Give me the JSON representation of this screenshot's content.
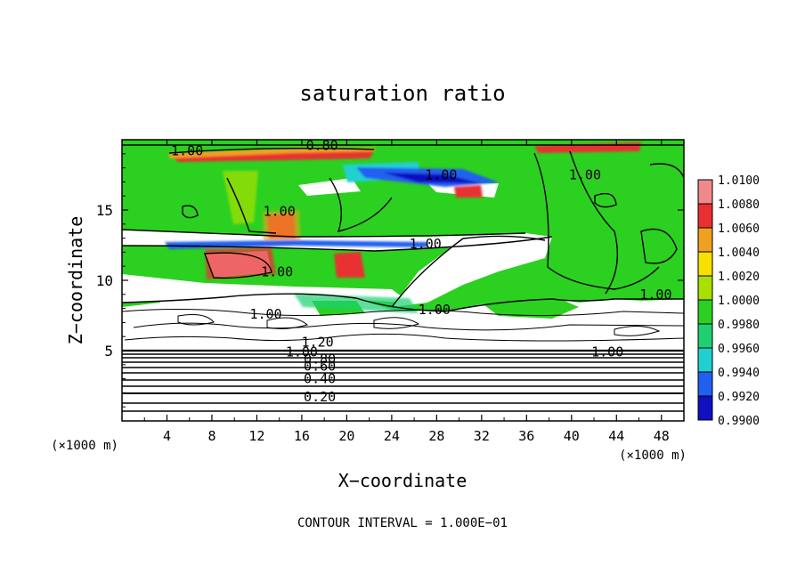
{
  "chart_data": {
    "type": "heatmap",
    "title": "saturation ratio",
    "xlabel": "X−coordinate",
    "ylabel": "Z−coordinate",
    "x_unit_label": "(×1000 m)",
    "y_unit_label": "(×1000 m)",
    "xlim": [
      0,
      50
    ],
    "ylim": [
      0,
      20
    ],
    "x_ticks": [
      "4",
      "8",
      "12",
      "16",
      "20",
      "24",
      "28",
      "32",
      "36",
      "40",
      "44",
      "48"
    ],
    "x_tick_values": [
      4,
      8,
      12,
      16,
      20,
      24,
      28,
      32,
      36,
      40,
      44,
      48
    ],
    "y_ticks": [
      "5",
      "10",
      "15"
    ],
    "y_tick_values": [
      5,
      10,
      15
    ],
    "footer": "CONTOUR INTERVAL = 1.000E−01",
    "colorbar": {
      "labels": [
        "1.0100",
        "1.0080",
        "1.0060",
        "1.0040",
        "1.0020",
        "1.0000",
        "0.9980",
        "0.9960",
        "0.9940",
        "0.9920",
        "0.9900"
      ],
      "colors": [
        "#f08a8a",
        "#e83030",
        "#f0a020",
        "#f8e000",
        "#a8e000",
        "#2cd020",
        "#20d070",
        "#20d0d0",
        "#2060f0",
        "#1010c0",
        "#7010a0"
      ]
    },
    "contour_labels": [
      {
        "text": "1.00",
        "x": 5.8,
        "z": 19.2
      },
      {
        "text": "0.80",
        "x": 17.8,
        "z": 19.6
      },
      {
        "text": "1.00",
        "x": 28.4,
        "z": 17.5
      },
      {
        "text": "1.00",
        "x": 41.2,
        "z": 17.5
      },
      {
        "text": "1.00",
        "x": 14.0,
        "z": 14.9
      },
      {
        "text": "1.00",
        "x": 27.0,
        "z": 12.6
      },
      {
        "text": "1.00",
        "x": 13.8,
        "z": 10.6
      },
      {
        "text": "1.00",
        "x": 47.5,
        "z": 9.0
      },
      {
        "text": "1.00",
        "x": 12.8,
        "z": 7.6
      },
      {
        "text": "1.00",
        "x": 27.8,
        "z": 7.9
      },
      {
        "text": "1.20",
        "x": 17.4,
        "z": 5.6
      },
      {
        "text": "1.00",
        "x": 16.0,
        "z": 4.9
      },
      {
        "text": "0.80",
        "x": 17.6,
        "z": 4.4
      },
      {
        "text": "0.60",
        "x": 17.6,
        "z": 3.9
      },
      {
        "text": "0.40",
        "x": 17.6,
        "z": 3.0
      },
      {
        "text": "0.20",
        "x": 17.6,
        "z": 1.7
      },
      {
        "text": "1.00",
        "x": 43.2,
        "z": 4.9
      }
    ]
  }
}
